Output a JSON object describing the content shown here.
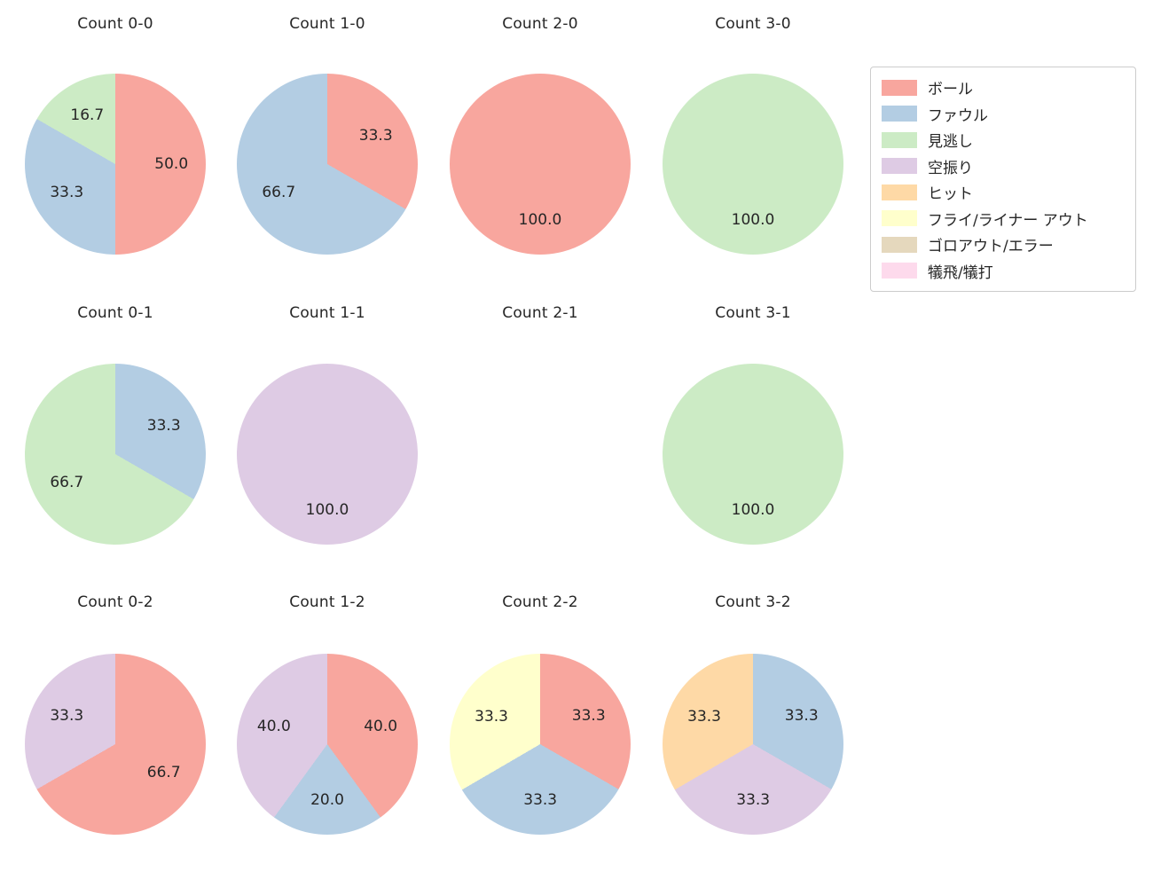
{
  "figure": {
    "background": "#ffffff",
    "text_color": "#262626"
  },
  "legend": {
    "items": [
      {
        "label": "ボール",
        "color": "#f8a69e"
      },
      {
        "label": "ファウル",
        "color": "#b3cde3"
      },
      {
        "label": "見逃し",
        "color": "#ccebc5"
      },
      {
        "label": "空振り",
        "color": "#decbe4"
      },
      {
        "label": "ヒット",
        "color": "#fed9a6"
      },
      {
        "label": "フライ/ライナー アウト",
        "color": "#ffffcc"
      },
      {
        "label": "ゴロアウト/エラー",
        "color": "#e5d8bd"
      },
      {
        "label": "犠飛/犠打",
        "color": "#fddaec"
      }
    ]
  },
  "chart_data": [
    {
      "type": "pie",
      "title": "Count 0-0",
      "slices": [
        {
          "label": "ボール",
          "value": 50.0
        },
        {
          "label": "ファウル",
          "value": 33.3
        },
        {
          "label": "見逃し",
          "value": 16.7
        }
      ]
    },
    {
      "type": "pie",
      "title": "Count 1-0",
      "slices": [
        {
          "label": "ボール",
          "value": 33.3
        },
        {
          "label": "ファウル",
          "value": 66.7
        }
      ]
    },
    {
      "type": "pie",
      "title": "Count 2-0",
      "slices": [
        {
          "label": "ボール",
          "value": 100.0
        }
      ]
    },
    {
      "type": "pie",
      "title": "Count 3-0",
      "slices": [
        {
          "label": "見逃し",
          "value": 100.0
        }
      ]
    },
    {
      "type": "pie",
      "title": "Count 0-1",
      "slices": [
        {
          "label": "ファウル",
          "value": 33.3
        },
        {
          "label": "見逃し",
          "value": 66.7
        }
      ]
    },
    {
      "type": "pie",
      "title": "Count 1-1",
      "slices": [
        {
          "label": "空振り",
          "value": 100.0
        }
      ]
    },
    {
      "type": "pie",
      "title": "Count 2-1",
      "slices": []
    },
    {
      "type": "pie",
      "title": "Count 3-1",
      "slices": [
        {
          "label": "見逃し",
          "value": 100.0
        }
      ]
    },
    {
      "type": "pie",
      "title": "Count 0-2",
      "slices": [
        {
          "label": "ボール",
          "value": 66.7
        },
        {
          "label": "空振り",
          "value": 33.3
        }
      ]
    },
    {
      "type": "pie",
      "title": "Count 1-2",
      "slices": [
        {
          "label": "ボール",
          "value": 40.0
        },
        {
          "label": "ファウル",
          "value": 20.0
        },
        {
          "label": "空振り",
          "value": 40.0
        }
      ]
    },
    {
      "type": "pie",
      "title": "Count 2-2",
      "slices": [
        {
          "label": "ボール",
          "value": 33.3
        },
        {
          "label": "ファウル",
          "value": 33.3
        },
        {
          "label": "フライ/ライナー アウト",
          "value": 33.3
        }
      ]
    },
    {
      "type": "pie",
      "title": "Count 3-2",
      "slices": [
        {
          "label": "ファウル",
          "value": 33.3
        },
        {
          "label": "空振り",
          "value": 33.3
        },
        {
          "label": "ヒット",
          "value": 33.3
        }
      ]
    }
  ]
}
